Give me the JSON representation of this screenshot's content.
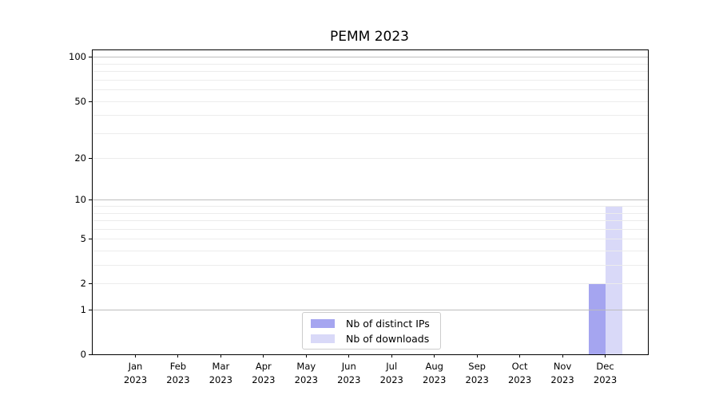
{
  "figure": {
    "background": "#ffffff"
  },
  "chart_data": {
    "type": "bar",
    "title": "PEMM 2023",
    "xlabel": "",
    "ylabel": "",
    "x_tick_labels": [
      [
        "Jan",
        "2023"
      ],
      [
        "Feb",
        "2023"
      ],
      [
        "Mar",
        "2023"
      ],
      [
        "Apr",
        "2023"
      ],
      [
        "May",
        "2023"
      ],
      [
        "Jun",
        "2023"
      ],
      [
        "Jul",
        "2023"
      ],
      [
        "Aug",
        "2023"
      ],
      [
        "Sep",
        "2023"
      ],
      [
        "Oct",
        "2023"
      ],
      [
        "Nov",
        "2023"
      ],
      [
        "Dec",
        "2023"
      ]
    ],
    "series": [
      {
        "name": "Nb of distinct IPs",
        "color": "#a5a5f0",
        "values": [
          0,
          0,
          0,
          0,
          0,
          0,
          0,
          0,
          0,
          0,
          0,
          2
        ]
      },
      {
        "name": "Nb of downloads",
        "color": "#d9d9f8",
        "values": [
          0,
          0,
          0,
          0,
          0,
          0,
          0,
          0,
          0,
          0,
          0,
          9
        ]
      }
    ],
    "yscale": "log1p",
    "ylim": [
      0,
      111
    ],
    "yticks": [
      0,
      1,
      2,
      5,
      10,
      20,
      50,
      100
    ],
    "grid": {
      "enabled": true,
      "major_values": [
        1,
        10,
        100
      ],
      "minor_values": [
        2,
        3,
        4,
        5,
        6,
        7,
        8,
        9,
        20,
        30,
        40,
        50,
        60,
        70,
        80,
        90
      ],
      "major_color": "#bdbdbd",
      "minor_color": "#ececec"
    },
    "legend": {
      "position": "lower center",
      "entries": [
        "Nb of distinct IPs",
        "Nb of downloads"
      ]
    }
  }
}
